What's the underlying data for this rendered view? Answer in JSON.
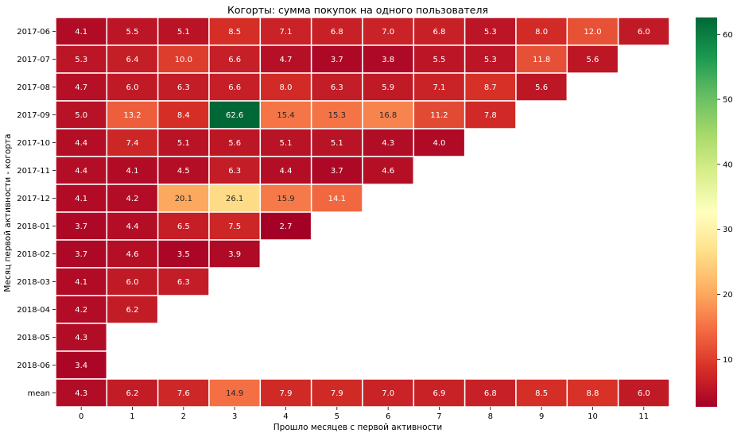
{
  "chart_data": {
    "type": "heatmap",
    "title": "Когорты: сумма покупок на одного пользователя",
    "xlabel": "Прошло месяцев с первой активности",
    "ylabel": "Месяц первой активности - когорта",
    "x_categories": [
      "0",
      "1",
      "2",
      "3",
      "4",
      "5",
      "6",
      "7",
      "8",
      "9",
      "10",
      "11"
    ],
    "y_categories": [
      "2017-06",
      "2017-07",
      "2017-08",
      "2017-09",
      "2017-10",
      "2017-11",
      "2017-12",
      "2018-01",
      "2018-02",
      "2018-03",
      "2018-04",
      "2018-05",
      "2018-06",
      "mean"
    ],
    "values": [
      [
        4.1,
        5.5,
        5.1,
        8.5,
        7.1,
        6.8,
        7.0,
        6.8,
        5.3,
        8.0,
        12.0,
        6.0
      ],
      [
        5.3,
        6.4,
        10.0,
        6.6,
        4.7,
        3.7,
        3.8,
        5.5,
        5.3,
        11.8,
        5.6,
        null
      ],
      [
        4.7,
        6.0,
        6.3,
        6.6,
        8.0,
        6.3,
        5.9,
        7.1,
        8.7,
        5.6,
        null,
        null
      ],
      [
        5.0,
        13.2,
        8.4,
        62.6,
        15.4,
        15.3,
        16.8,
        11.2,
        7.8,
        null,
        null,
        null
      ],
      [
        4.4,
        7.4,
        5.1,
        5.6,
        5.1,
        5.1,
        4.3,
        4.0,
        null,
        null,
        null,
        null
      ],
      [
        4.4,
        4.1,
        4.5,
        6.3,
        4.4,
        3.7,
        4.6,
        null,
        null,
        null,
        null,
        null
      ],
      [
        4.1,
        4.2,
        20.1,
        26.1,
        15.9,
        14.1,
        null,
        null,
        null,
        null,
        null,
        null
      ],
      [
        3.7,
        4.4,
        6.5,
        7.5,
        2.7,
        null,
        null,
        null,
        null,
        null,
        null,
        null
      ],
      [
        3.7,
        4.6,
        3.5,
        3.9,
        null,
        null,
        null,
        null,
        null,
        null,
        null,
        null
      ],
      [
        4.1,
        6.0,
        6.3,
        null,
        null,
        null,
        null,
        null,
        null,
        null,
        null,
        null
      ],
      [
        4.2,
        6.2,
        null,
        null,
        null,
        null,
        null,
        null,
        null,
        null,
        null,
        null
      ],
      [
        4.3,
        null,
        null,
        null,
        null,
        null,
        null,
        null,
        null,
        null,
        null,
        null
      ],
      [
        3.4,
        null,
        null,
        null,
        null,
        null,
        null,
        null,
        null,
        null,
        null,
        null
      ],
      [
        4.3,
        6.2,
        7.6,
        14.9,
        7.9,
        7.9,
        7.0,
        6.9,
        6.8,
        8.5,
        8.8,
        6.0
      ]
    ],
    "colormap": "RdYlGn",
    "color_range": [
      2.7,
      62.6
    ],
    "colorbar_ticks": [
      10,
      20,
      30,
      40,
      50,
      60
    ],
    "annotation_format": "0.1f",
    "grid_color": "#ffffff"
  }
}
